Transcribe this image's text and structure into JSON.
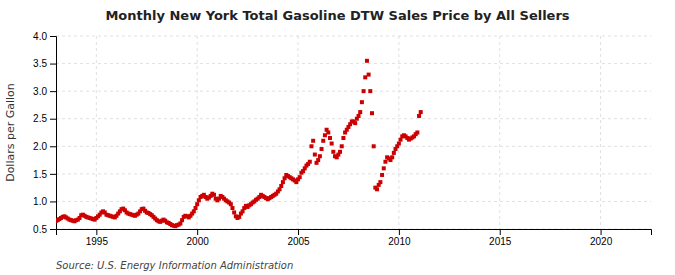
{
  "chart_data": {
    "type": "scatter",
    "title": "Monthly New York Total Gasoline DTW Sales Price by All Sellers",
    "y_label": "Dollars per Gallon",
    "source": "Source: U.S. Energy Information Administration",
    "color": "#cc0000",
    "marker": "square",
    "grid": true,
    "xlim": [
      1993.0,
      2022.5
    ],
    "ylim": [
      0.5,
      4.0
    ],
    "xticks": [
      1995,
      2000,
      2005,
      2010,
      2015,
      2020
    ],
    "yticks": [
      0.5,
      {
        "value": 1.0,
        "label": "1.0"
      },
      1.5,
      {
        "value": 2.0,
        "label": "2.0"
      },
      2.5,
      {
        "value": 3.0,
        "label": "3.0"
      },
      3.5,
      {
        "value": 4.0,
        "label": "4.0"
      }
    ],
    "x": [
      1993.0,
      1993.083,
      1993.167,
      1993.25,
      1993.333,
      1993.417,
      1993.5,
      1993.583,
      1993.667,
      1993.75,
      1993.833,
      1993.917,
      1994.0,
      1994.083,
      1994.167,
      1994.25,
      1994.333,
      1994.417,
      1994.5,
      1994.583,
      1994.667,
      1994.75,
      1994.833,
      1994.917,
      1995.0,
      1995.083,
      1995.167,
      1995.25,
      1995.333,
      1995.417,
      1995.5,
      1995.583,
      1995.667,
      1995.75,
      1995.833,
      1995.917,
      1996.0,
      1996.083,
      1996.167,
      1996.25,
      1996.333,
      1996.417,
      1996.5,
      1996.583,
      1996.667,
      1996.75,
      1996.833,
      1996.917,
      1997.0,
      1997.083,
      1997.167,
      1997.25,
      1997.333,
      1997.417,
      1997.5,
      1997.583,
      1997.667,
      1997.75,
      1997.833,
      1997.917,
      1998.0,
      1998.083,
      1998.167,
      1998.25,
      1998.333,
      1998.417,
      1998.5,
      1998.583,
      1998.667,
      1998.75,
      1998.833,
      1998.917,
      1999.0,
      1999.083,
      1999.167,
      1999.25,
      1999.333,
      1999.417,
      1999.5,
      1999.583,
      1999.667,
      1999.75,
      1999.833,
      1999.917,
      2000.0,
      2000.083,
      2000.167,
      2000.25,
      2000.333,
      2000.417,
      2000.5,
      2000.583,
      2000.667,
      2000.75,
      2000.833,
      2000.917,
      2001.0,
      2001.083,
      2001.167,
      2001.25,
      2001.333,
      2001.417,
      2001.5,
      2001.583,
      2001.667,
      2001.75,
      2001.833,
      2001.917,
      2002.0,
      2002.083,
      2002.167,
      2002.25,
      2002.333,
      2002.417,
      2002.5,
      2002.583,
      2002.667,
      2002.75,
      2002.833,
      2002.917,
      2003.0,
      2003.083,
      2003.167,
      2003.25,
      2003.333,
      2003.417,
      2003.5,
      2003.583,
      2003.667,
      2003.75,
      2003.833,
      2003.917,
      2004.0,
      2004.083,
      2004.167,
      2004.25,
      2004.333,
      2004.417,
      2004.5,
      2004.583,
      2004.667,
      2004.75,
      2004.833,
      2004.917,
      2005.0,
      2005.083,
      2005.167,
      2005.25,
      2005.333,
      2005.417,
      2005.5,
      2005.583,
      2005.667,
      2005.75,
      2005.833,
      2005.917,
      2006.0,
      2006.083,
      2006.167,
      2006.25,
      2006.333,
      2006.417,
      2006.5,
      2006.583,
      2006.667,
      2006.75,
      2006.833,
      2006.917,
      2007.0,
      2007.083,
      2007.167,
      2007.25,
      2007.333,
      2007.417,
      2007.5,
      2007.583,
      2007.667,
      2007.75,
      2007.833,
      2007.917,
      2008.0,
      2008.083,
      2008.167,
      2008.25,
      2008.333,
      2008.417,
      2008.5,
      2008.583,
      2008.667,
      2008.75,
      2008.833,
      2008.917,
      2009.0,
      2009.083,
      2009.167,
      2009.25,
      2009.333,
      2009.417,
      2009.5,
      2009.583,
      2009.667,
      2009.75,
      2009.833,
      2009.917,
      2010.0,
      2010.083,
      2010.167,
      2010.25,
      2010.333,
      2010.417,
      2010.5,
      2010.583,
      2010.667,
      2010.75,
      2010.833,
      2010.917,
      2011.0,
      2011.083
    ],
    "values": [
      0.65,
      0.66,
      0.68,
      0.7,
      0.72,
      0.73,
      0.71,
      0.69,
      0.67,
      0.66,
      0.65,
      0.64,
      0.66,
      0.67,
      0.7,
      0.75,
      0.76,
      0.74,
      0.72,
      0.71,
      0.7,
      0.69,
      0.68,
      0.67,
      0.7,
      0.73,
      0.76,
      0.8,
      0.82,
      0.8,
      0.76,
      0.75,
      0.74,
      0.73,
      0.72,
      0.71,
      0.74,
      0.78,
      0.82,
      0.86,
      0.87,
      0.84,
      0.8,
      0.78,
      0.77,
      0.76,
      0.75,
      0.74,
      0.76,
      0.78,
      0.82,
      0.86,
      0.87,
      0.83,
      0.8,
      0.79,
      0.77,
      0.75,
      0.72,
      0.69,
      0.66,
      0.64,
      0.63,
      0.65,
      0.67,
      0.65,
      0.62,
      0.61,
      0.59,
      0.57,
      0.56,
      0.55,
      0.57,
      0.58,
      0.6,
      0.66,
      0.72,
      0.74,
      0.73,
      0.71,
      0.74,
      0.78,
      0.82,
      0.88,
      0.95,
      1.02,
      1.08,
      1.1,
      1.12,
      1.08,
      1.05,
      1.07,
      1.1,
      1.14,
      1.12,
      1.05,
      1.02,
      1.05,
      1.1,
      1.08,
      1.05,
      1.02,
      1.0,
      0.98,
      0.95,
      0.88,
      0.8,
      0.73,
      0.7,
      0.72,
      0.78,
      0.82,
      0.88,
      0.92,
      0.9,
      0.93,
      0.95,
      0.98,
      1.0,
      1.03,
      1.05,
      1.08,
      1.12,
      1.1,
      1.08,
      1.06,
      1.04,
      1.06,
      1.08,
      1.1,
      1.12,
      1.14,
      1.18,
      1.22,
      1.28,
      1.35,
      1.42,
      1.48,
      1.46,
      1.44,
      1.42,
      1.4,
      1.38,
      1.35,
      1.4,
      1.44,
      1.52,
      1.55,
      1.6,
      1.65,
      1.68,
      1.72,
      2.0,
      2.1,
      1.85,
      1.7,
      1.75,
      1.82,
      1.95,
      2.1,
      2.2,
      2.3,
      2.25,
      2.15,
      2.05,
      1.9,
      1.82,
      1.8,
      1.85,
      1.9,
      2.0,
      2.15,
      2.25,
      2.3,
      2.35,
      2.4,
      2.45,
      2.45,
      2.42,
      2.5,
      2.55,
      2.62,
      2.8,
      3.0,
      3.25,
      3.55,
      3.3,
      3.0,
      2.6,
      2.0,
      1.25,
      1.22,
      1.3,
      1.35,
      1.48,
      1.6,
      1.72,
      1.8,
      1.78,
      1.75,
      1.8,
      1.88,
      1.95,
      2.0,
      2.05,
      2.12,
      2.18,
      2.2,
      2.18,
      2.15,
      2.12,
      2.14,
      2.16,
      2.18,
      2.22,
      2.25,
      2.55,
      2.62
    ]
  }
}
